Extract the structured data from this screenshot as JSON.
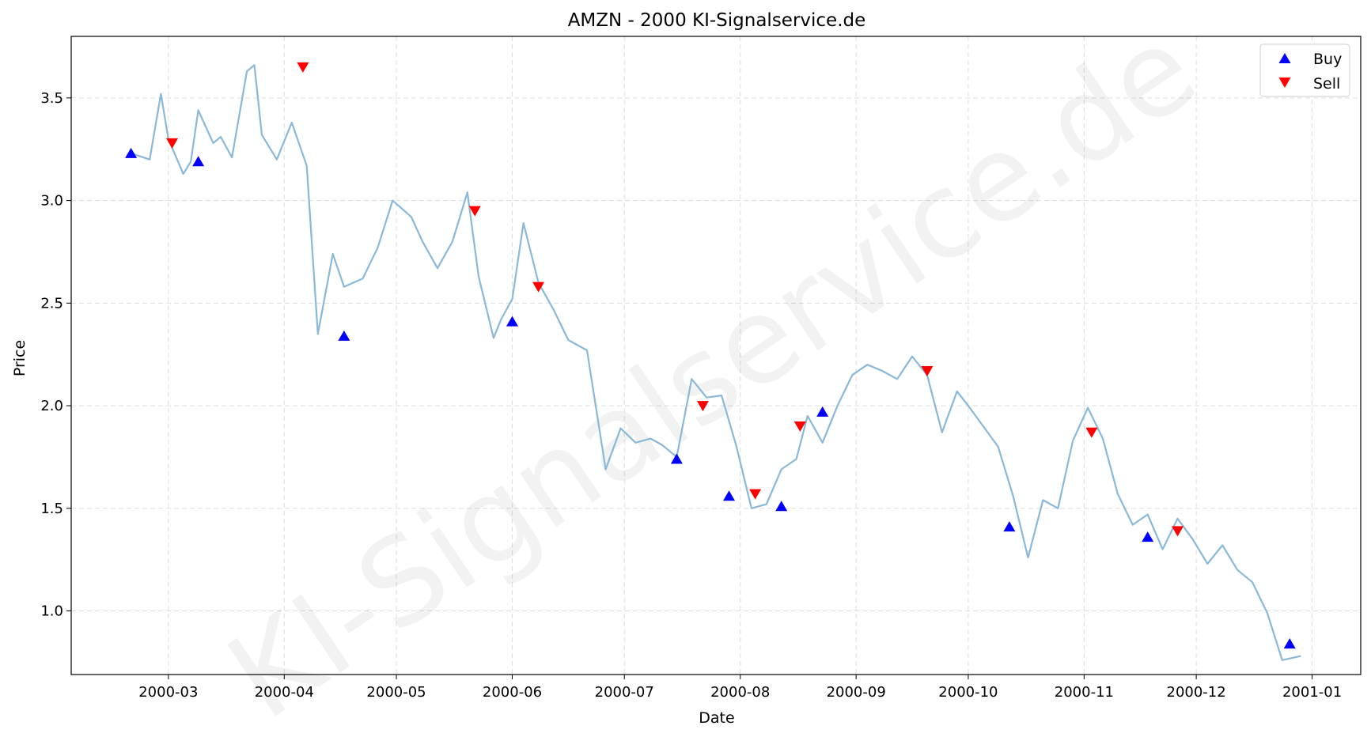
{
  "chart_data": {
    "type": "line",
    "title": "AMZN - 2000 KI-Signalservice.de",
    "xlabel": "Date",
    "ylabel": "Price",
    "watermark": "KI-Signalservice.de",
    "xlim": [
      "2000-02-04",
      "2001-01-14"
    ],
    "ylim": [
      0.69,
      3.8
    ],
    "x_ticks": [
      "2000-03-01",
      "2000-04-01",
      "2000-05-01",
      "2000-06-01",
      "2000-07-01",
      "2000-08-01",
      "2000-09-01",
      "2000-10-01",
      "2000-11-01",
      "2000-12-01",
      "2001-01-01"
    ],
    "x_tick_labels": [
      "2000-03",
      "2000-04",
      "2000-05",
      "2000-06",
      "2000-07",
      "2000-08",
      "2000-09",
      "2000-10",
      "2000-11",
      "2000-12",
      "2001-01"
    ],
    "y_ticks": [
      1.0,
      1.5,
      2.0,
      2.5,
      3.0,
      3.5
    ],
    "y_tick_labels": [
      "1.0",
      "1.5",
      "2.0",
      "2.5",
      "3.0",
      "3.5"
    ],
    "grid": true,
    "legend_position": "top-right",
    "colors": {
      "line": "#89b8d9",
      "buy": "#0000ff",
      "sell": "#ff0000",
      "grid": "#dddddd"
    },
    "series": [
      {
        "x": [
          "2000-02-20",
          "2000-02-25",
          "2000-02-28",
          "2000-03-01",
          "2000-03-05",
          "2000-03-07",
          "2000-03-09",
          "2000-03-13",
          "2000-03-15",
          "2000-03-18",
          "2000-03-22",
          "2000-03-24",
          "2000-03-26",
          "2000-03-30",
          "2000-04-03",
          "2000-04-07",
          "2000-04-10",
          "2000-04-14",
          "2000-04-17",
          "2000-04-22",
          "2000-04-26",
          "2000-04-30",
          "2000-05-05",
          "2000-05-08",
          "2000-05-12",
          "2000-05-16",
          "2000-05-20",
          "2000-05-23",
          "2000-05-27",
          "2000-05-29",
          "2000-06-01",
          "2000-06-04",
          "2000-06-08",
          "2000-06-12",
          "2000-06-16",
          "2000-06-21",
          "2000-06-26",
          "2000-06-30",
          "2000-07-04",
          "2000-07-08",
          "2000-07-11",
          "2000-07-15",
          "2000-07-19",
          "2000-07-23",
          "2000-07-27",
          "2000-07-31",
          "2000-08-04",
          "2000-08-08",
          "2000-08-12",
          "2000-08-16",
          "2000-08-19",
          "2000-08-23",
          "2000-08-27",
          "2000-08-31",
          "2000-09-04",
          "2000-09-08",
          "2000-09-12",
          "2000-09-16",
          "2000-09-20",
          "2000-09-24",
          "2000-09-28",
          "2000-10-01",
          "2000-10-05",
          "2000-10-09",
          "2000-10-13",
          "2000-10-17",
          "2000-10-21",
          "2000-10-25",
          "2000-10-29",
          "2000-11-02",
          "2000-11-06",
          "2000-11-10",
          "2000-11-14",
          "2000-11-18",
          "2000-11-22",
          "2000-11-26",
          "2000-11-30",
          "2000-12-04",
          "2000-12-08",
          "2000-12-12",
          "2000-12-16",
          "2000-12-20",
          "2000-12-24",
          "2000-12-29"
        ],
        "values": [
          3.23,
          3.2,
          3.52,
          3.3,
          3.13,
          3.19,
          3.44,
          3.28,
          3.31,
          3.21,
          3.63,
          3.66,
          3.32,
          3.2,
          3.38,
          3.17,
          2.35,
          2.74,
          2.58,
          2.62,
          2.77,
          3.0,
          2.92,
          2.8,
          2.67,
          2.8,
          3.04,
          2.63,
          2.33,
          2.42,
          2.52,
          2.89,
          2.6,
          2.47,
          2.32,
          2.27,
          1.69,
          1.89,
          1.82,
          1.84,
          1.81,
          1.75,
          2.13,
          2.04,
          2.05,
          1.8,
          1.5,
          1.52,
          1.69,
          1.74,
          1.95,
          1.82,
          2.0,
          2.15,
          2.2,
          2.17,
          2.13,
          2.24,
          2.15,
          1.87,
          2.07,
          2.0,
          1.9,
          1.8,
          1.56,
          1.26,
          1.54,
          1.5,
          1.83,
          1.99,
          1.84,
          1.57,
          1.42,
          1.47,
          1.3,
          1.45,
          1.35,
          1.23,
          1.32,
          1.2,
          1.14,
          0.99,
          0.76,
          0.78
        ]
      },
      {
        "name": "Buy",
        "marker": "triangle-up",
        "x": [
          "2000-02-20",
          "2000-03-09",
          "2000-04-17",
          "2000-06-01",
          "2000-07-15",
          "2000-07-29",
          "2000-08-12",
          "2000-08-23",
          "2000-10-12",
          "2000-11-18",
          "2000-12-26"
        ],
        "values": [
          3.23,
          3.19,
          2.34,
          2.41,
          1.74,
          1.56,
          1.51,
          1.97,
          1.41,
          1.36,
          0.84
        ]
      },
      {
        "name": "Sell",
        "marker": "triangle-down",
        "x": [
          "2000-03-02",
          "2000-04-06",
          "2000-05-22",
          "2000-06-08",
          "2000-07-22",
          "2000-08-05",
          "2000-08-17",
          "2000-09-20",
          "2000-11-03",
          "2000-11-26"
        ],
        "values": [
          3.28,
          3.65,
          2.95,
          2.58,
          2.0,
          1.57,
          1.9,
          2.17,
          1.87,
          1.39
        ]
      }
    ]
  }
}
